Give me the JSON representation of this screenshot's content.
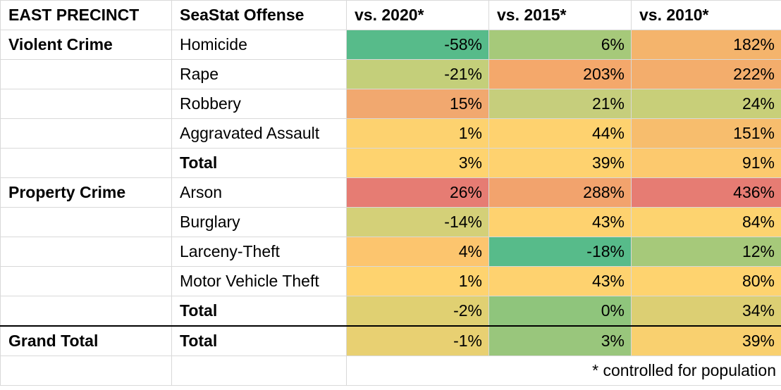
{
  "header": {
    "precinct": "EAST PRECINCT",
    "offense": "SeaStat Offense",
    "cols": [
      "vs. 2020*",
      "vs. 2015*",
      "vs. 2010*"
    ]
  },
  "rows": [
    {
      "group": "Violent Crime",
      "offense": "Homicide",
      "bold": false,
      "v2020": "-58%",
      "v2015": "6%",
      "v2010": "182%"
    },
    {
      "group": "",
      "offense": "Rape",
      "bold": false,
      "v2020": "-21%",
      "v2015": "203%",
      "v2010": "222%"
    },
    {
      "group": "",
      "offense": "Robbery",
      "bold": false,
      "v2020": "15%",
      "v2015": "21%",
      "v2010": "24%"
    },
    {
      "group": "",
      "offense": "Aggravated Assault",
      "bold": false,
      "v2020": "1%",
      "v2015": "44%",
      "v2010": "151%"
    },
    {
      "group": "",
      "offense": "Total",
      "bold": true,
      "v2020": "3%",
      "v2015": "39%",
      "v2010": "91%"
    },
    {
      "group": "Property Crime",
      "offense": "Arson",
      "bold": false,
      "v2020": "26%",
      "v2015": "288%",
      "v2010": "436%"
    },
    {
      "group": "",
      "offense": "Burglary",
      "bold": false,
      "v2020": "-14%",
      "v2015": "43%",
      "v2010": "84%"
    },
    {
      "group": "",
      "offense": "Larceny-Theft",
      "bold": false,
      "v2020": "4%",
      "v2015": "-18%",
      "v2010": "12%"
    },
    {
      "group": "",
      "offense": "Motor Vehicle Theft",
      "bold": false,
      "v2020": "1%",
      "v2015": "43%",
      "v2010": "80%"
    },
    {
      "group": "",
      "offense": "Total",
      "bold": true,
      "v2020": "-2%",
      "v2015": "0%",
      "v2010": "34%"
    },
    {
      "group": "Grand Total",
      "offense": "Total",
      "bold": true,
      "v2020": "-1%",
      "v2015": "3%",
      "v2010": "39%"
    }
  ],
  "footnote": "* controlled for population",
  "colors": {
    "v2020": [
      "#57bb8a",
      "#c4cf7a",
      "#f1a86f",
      "#fdd26f",
      "#fed36f",
      "#e67c73",
      "#d4d078",
      "#fcc56e",
      "#fed36f",
      "#e0d072",
      "#e8d072"
    ],
    "v2015": [
      "#a6c97a",
      "#f4a86b",
      "#c6ce7c",
      "#fed26f",
      "#fed26f",
      "#f2a36d",
      "#fed26f",
      "#57bb8a",
      "#fed26f",
      "#8fc57c",
      "#99c67c"
    ],
    "v2010": [
      "#f4b46c",
      "#f3ad6c",
      "#c8cf79",
      "#f7bd6d",
      "#fcc96e",
      "#e67c73",
      "#fdd36f",
      "#a6c97a",
      "#fed36f",
      "#dccf73",
      "#f9d06f"
    ]
  },
  "chart_data": {
    "type": "table",
    "title": "EAST PRECINCT",
    "columns": [
      "SeaStat Offense",
      "vs. 2020*",
      "vs. 2015*",
      "vs. 2010*"
    ],
    "groups": [
      "Violent Crime",
      "Property Crime",
      "Grand Total"
    ],
    "series": [
      {
        "name": "vs. 2020*",
        "values": [
          -58,
          -21,
          15,
          1,
          3,
          26,
          -14,
          4,
          1,
          -2,
          -1
        ]
      },
      {
        "name": "vs. 2015*",
        "values": [
          6,
          203,
          21,
          44,
          39,
          288,
          43,
          -18,
          43,
          0,
          3
        ]
      },
      {
        "name": "vs. 2010*",
        "values": [
          182,
          222,
          24,
          151,
          91,
          436,
          84,
          12,
          80,
          34,
          39
        ]
      }
    ],
    "categories": [
      "Homicide",
      "Rape",
      "Robbery",
      "Aggravated Assault",
      "Total",
      "Arson",
      "Burglary",
      "Larceny-Theft",
      "Motor Vehicle Theft",
      "Total",
      "Total"
    ],
    "annotations": [
      "* controlled for population"
    ]
  }
}
